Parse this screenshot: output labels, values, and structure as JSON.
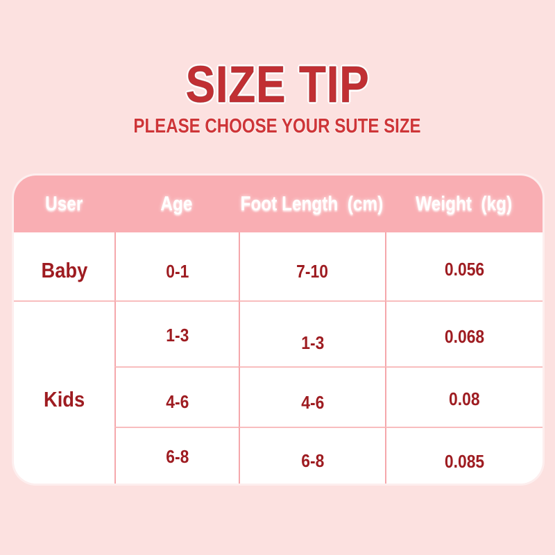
{
  "theme": {
    "background": "#fce1e0",
    "header_pink": "#f9aeb3",
    "title_red": "#c12f33",
    "subtitle_red": "#ce3538",
    "body_red": "#9e1c21",
    "line_v": "#f5a7ab",
    "line_h": "#f8bdbe"
  },
  "header": {
    "title": "SIZE TIP",
    "subtitle": "PLEASE CHOOSE YOUR SUTE SIZE"
  },
  "table": {
    "columns": [
      "User",
      "Age",
      "Foot Length  (cm)",
      "Weight  (kg)"
    ],
    "rows": [
      {
        "user": "Baby",
        "entries": [
          {
            "age": "0-1",
            "foot_length": "7-10",
            "weight": "0.056"
          }
        ]
      },
      {
        "user": "Kids",
        "entries": [
          {
            "age": "1-3",
            "foot_length": "1-3",
            "weight": "0.068"
          },
          {
            "age": "4-6",
            "foot_length": "4-6",
            "weight": "0.08"
          },
          {
            "age": "6-8",
            "foot_length": "6-8",
            "weight": "0.085"
          }
        ]
      }
    ]
  },
  "chart_data": {
    "type": "table",
    "title": "SIZE TIP",
    "subtitle": "PLEASE CHOOSE YOUR SUTE SIZE",
    "columns": [
      "User",
      "Age",
      "Foot Length (cm)",
      "Weight (kg)"
    ],
    "rows": [
      [
        "Baby",
        "0-1",
        "7-10",
        "0.056"
      ],
      [
        "Kids",
        "1-3",
        "1-3",
        "0.068"
      ],
      [
        "Kids",
        "4-6",
        "4-6",
        "0.08"
      ],
      [
        "Kids",
        "6-8",
        "6-8",
        "0.085"
      ]
    ]
  }
}
